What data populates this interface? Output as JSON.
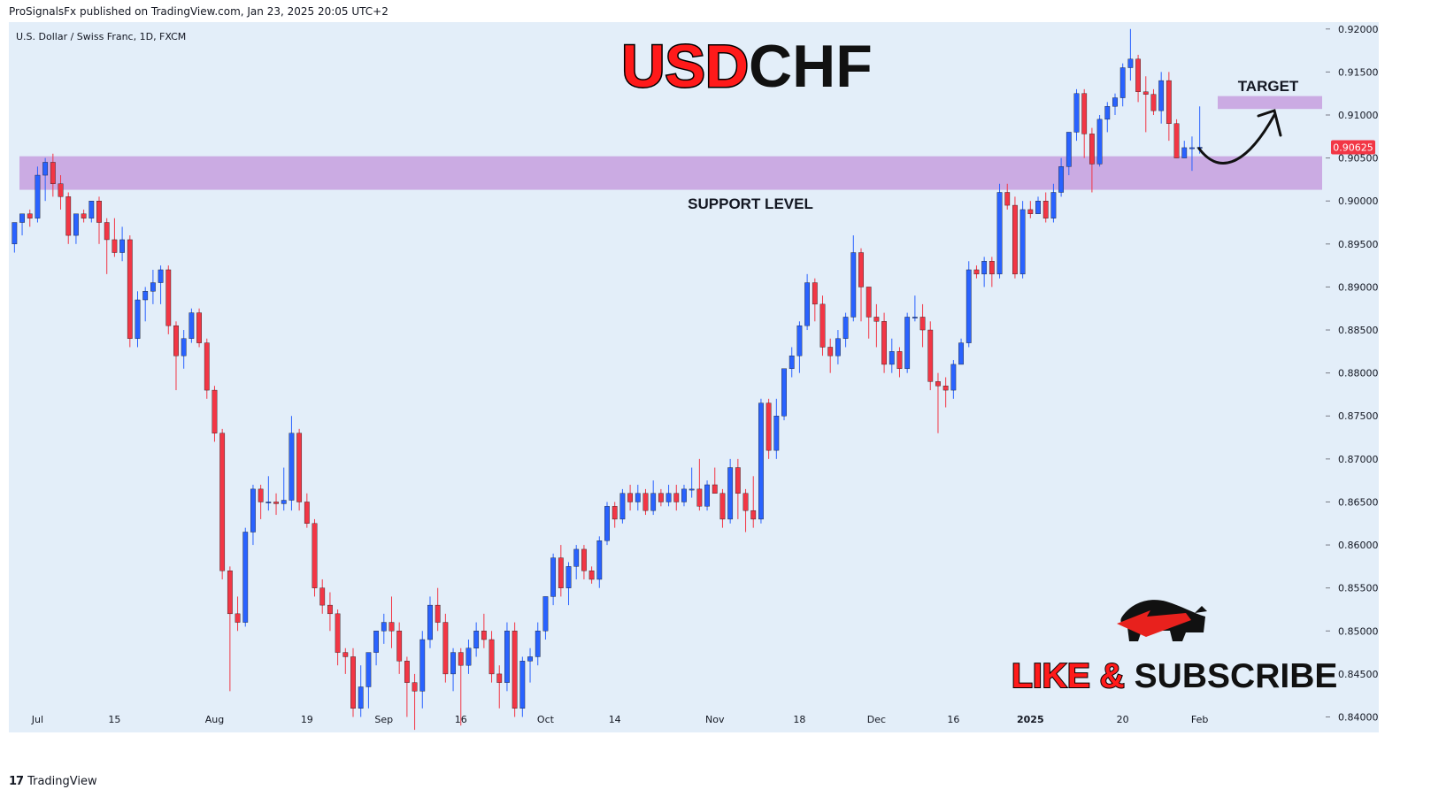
{
  "header": {
    "publisher": "ProSignalsFx published on TradingView.com, Jan 23, 2025 20:05 UTC+2"
  },
  "footer": {
    "brand": "TradingView",
    "logo_glyph": "17"
  },
  "overlay": {
    "title_part1": "USD",
    "title_part2": "CHF",
    "support_label": "SUPPORT LEVEL",
    "target_label": "TARGET",
    "cta_part1": "LIKE & ",
    "cta_part2": "SUBSCRIBE"
  },
  "colors": {
    "bg": "#e3eef9",
    "up": "#2962ff",
    "down": "#f23645",
    "zone": "#c9a7e2",
    "title_red": "#ff1a1a",
    "text": "#131722",
    "price_tag": "#f23645"
  },
  "chart_data": {
    "type": "candlestick",
    "symbol_label": "U.S. Dollar / Swiss Franc, 1D, FXCM",
    "ylim": [
      0.8382,
      0.9208
    ],
    "y_ticks": [
      {
        "v": 0.92,
        "label": "0.92000"
      },
      {
        "v": 0.915,
        "label": "0.91500"
      },
      {
        "v": 0.91,
        "label": "0.91000"
      },
      {
        "v": 0.905,
        "label": "0.90500"
      },
      {
        "v": 0.9,
        "label": "0.90000"
      },
      {
        "v": 0.895,
        "label": "0.89500"
      },
      {
        "v": 0.89,
        "label": "0.89000"
      },
      {
        "v": 0.885,
        "label": "0.88500"
      },
      {
        "v": 0.88,
        "label": "0.88000"
      },
      {
        "v": 0.875,
        "label": "0.87500"
      },
      {
        "v": 0.87,
        "label": "0.87000"
      },
      {
        "v": 0.865,
        "label": "0.86500"
      },
      {
        "v": 0.86,
        "label": "0.86000"
      },
      {
        "v": 0.855,
        "label": "0.85500"
      },
      {
        "v": 0.85,
        "label": "0.85000"
      },
      {
        "v": 0.845,
        "label": "0.84500"
      },
      {
        "v": 0.84,
        "label": "0.84000"
      }
    ],
    "x_ticks": [
      {
        "i": 3,
        "label": "Jul"
      },
      {
        "i": 13,
        "label": "15"
      },
      {
        "i": 26,
        "label": "Aug"
      },
      {
        "i": 38,
        "label": "19"
      },
      {
        "i": 48,
        "label": "Sep"
      },
      {
        "i": 58,
        "label": "16"
      },
      {
        "i": 69,
        "label": "Oct"
      },
      {
        "i": 78,
        "label": "14"
      },
      {
        "i": 91,
        "label": "Nov"
      },
      {
        "i": 102,
        "label": "18"
      },
      {
        "i": 112,
        "label": "Dec"
      },
      {
        "i": 122,
        "label": "16"
      },
      {
        "i": 132,
        "label": "2025"
      },
      {
        "i": 144,
        "label": "20"
      },
      {
        "i": 154,
        "label": "Feb"
      }
    ],
    "last_price": {
      "v": 0.90625,
      "label": "0.90625"
    },
    "support_zone": [
      0.9013,
      0.9052
    ],
    "target_zone": [
      0.9107,
      0.9122
    ],
    "candles": [
      [
        0.895,
        0.8975,
        0.894,
        0.8975
      ],
      [
        0.8975,
        0.8985,
        0.896,
        0.8985
      ],
      [
        0.8985,
        0.899,
        0.897,
        0.898
      ],
      [
        0.898,
        0.904,
        0.8975,
        0.903
      ],
      [
        0.903,
        0.905,
        0.9,
        0.9045
      ],
      [
        0.9045,
        0.9055,
        0.9005,
        0.902
      ],
      [
        0.902,
        0.903,
        0.899,
        0.9005
      ],
      [
        0.9005,
        0.901,
        0.895,
        0.896
      ],
      [
        0.896,
        0.8985,
        0.895,
        0.8985
      ],
      [
        0.8985,
        0.899,
        0.8975,
        0.898
      ],
      [
        0.898,
        0.9,
        0.8975,
        0.9
      ],
      [
        0.9,
        0.9005,
        0.895,
        0.8975
      ],
      [
        0.8975,
        0.898,
        0.8915,
        0.8955
      ],
      [
        0.8955,
        0.898,
        0.8935,
        0.894
      ],
      [
        0.894,
        0.897,
        0.893,
        0.8955
      ],
      [
        0.8955,
        0.896,
        0.883,
        0.884
      ],
      [
        0.884,
        0.8895,
        0.883,
        0.8885
      ],
      [
        0.8885,
        0.89,
        0.886,
        0.8895
      ],
      [
        0.8895,
        0.892,
        0.888,
        0.8905
      ],
      [
        0.8905,
        0.8925,
        0.888,
        0.892
      ],
      [
        0.892,
        0.8925,
        0.8845,
        0.8855
      ],
      [
        0.8855,
        0.886,
        0.878,
        0.882
      ],
      [
        0.882,
        0.885,
        0.8805,
        0.884
      ],
      [
        0.884,
        0.8875,
        0.8835,
        0.887
      ],
      [
        0.887,
        0.8875,
        0.883,
        0.8835
      ],
      [
        0.8835,
        0.884,
        0.877,
        0.878
      ],
      [
        0.878,
        0.8785,
        0.872,
        0.873
      ],
      [
        0.873,
        0.8735,
        0.856,
        0.857
      ],
      [
        0.857,
        0.8575,
        0.843,
        0.852
      ],
      [
        0.852,
        0.854,
        0.85,
        0.851
      ],
      [
        0.851,
        0.862,
        0.8505,
        0.8615
      ],
      [
        0.8615,
        0.867,
        0.86,
        0.8665
      ],
      [
        0.8665,
        0.867,
        0.863,
        0.865
      ],
      [
        0.865,
        0.868,
        0.864,
        0.865
      ],
      [
        0.865,
        0.866,
        0.8635,
        0.8648
      ],
      [
        0.8648,
        0.869,
        0.864,
        0.8652
      ],
      [
        0.8652,
        0.875,
        0.864,
        0.873
      ],
      [
        0.873,
        0.8735,
        0.864,
        0.865
      ],
      [
        0.865,
        0.866,
        0.862,
        0.8625
      ],
      [
        0.8625,
        0.863,
        0.854,
        0.855
      ],
      [
        0.855,
        0.856,
        0.852,
        0.853
      ],
      [
        0.853,
        0.8545,
        0.85,
        0.852
      ],
      [
        0.852,
        0.8525,
        0.846,
        0.8475
      ],
      [
        0.8475,
        0.848,
        0.845,
        0.847
      ],
      [
        0.847,
        0.848,
        0.84,
        0.841
      ],
      [
        0.841,
        0.846,
        0.84,
        0.8435
      ],
      [
        0.8435,
        0.847,
        0.841,
        0.8475
      ],
      [
        0.8475,
        0.85,
        0.846,
        0.85
      ],
      [
        0.85,
        0.852,
        0.8485,
        0.851
      ],
      [
        0.851,
        0.854,
        0.848,
        0.85
      ],
      [
        0.85,
        0.851,
        0.845,
        0.8465
      ],
      [
        0.8465,
        0.847,
        0.84,
        0.844
      ],
      [
        0.844,
        0.845,
        0.8385,
        0.843
      ],
      [
        0.843,
        0.85,
        0.841,
        0.849
      ],
      [
        0.849,
        0.854,
        0.848,
        0.853
      ],
      [
        0.853,
        0.855,
        0.85,
        0.851
      ],
      [
        0.851,
        0.852,
        0.844,
        0.845
      ],
      [
        0.845,
        0.848,
        0.843,
        0.8475
      ],
      [
        0.8475,
        0.848,
        0.839,
        0.846
      ],
      [
        0.846,
        0.849,
        0.845,
        0.848
      ],
      [
        0.848,
        0.851,
        0.847,
        0.85
      ],
      [
        0.85,
        0.852,
        0.848,
        0.849
      ],
      [
        0.849,
        0.85,
        0.844,
        0.845
      ],
      [
        0.845,
        0.846,
        0.841,
        0.844
      ],
      [
        0.844,
        0.851,
        0.843,
        0.85
      ],
      [
        0.85,
        0.851,
        0.84,
        0.841
      ],
      [
        0.841,
        0.847,
        0.84,
        0.8465
      ],
      [
        0.8465,
        0.848,
        0.844,
        0.847
      ],
      [
        0.847,
        0.851,
        0.846,
        0.85
      ],
      [
        0.85,
        0.854,
        0.849,
        0.854
      ],
      [
        0.854,
        0.859,
        0.853,
        0.8585
      ],
      [
        0.8585,
        0.86,
        0.854,
        0.855
      ],
      [
        0.855,
        0.858,
        0.853,
        0.8575
      ],
      [
        0.8575,
        0.86,
        0.856,
        0.8595
      ],
      [
        0.8595,
        0.86,
        0.856,
        0.857
      ],
      [
        0.857,
        0.8575,
        0.8555,
        0.856
      ],
      [
        0.856,
        0.861,
        0.855,
        0.8605
      ],
      [
        0.8605,
        0.865,
        0.86,
        0.8645
      ],
      [
        0.8645,
        0.865,
        0.862,
        0.863
      ],
      [
        0.863,
        0.8665,
        0.8625,
        0.866
      ],
      [
        0.866,
        0.867,
        0.864,
        0.865
      ],
      [
        0.865,
        0.867,
        0.864,
        0.866
      ],
      [
        0.866,
        0.8665,
        0.8635,
        0.864
      ],
      [
        0.864,
        0.8675,
        0.8635,
        0.866
      ],
      [
        0.866,
        0.8665,
        0.8645,
        0.865
      ],
      [
        0.865,
        0.867,
        0.8645,
        0.866
      ],
      [
        0.866,
        0.867,
        0.864,
        0.865
      ],
      [
        0.865,
        0.867,
        0.8645,
        0.8665
      ],
      [
        0.8665,
        0.869,
        0.8655,
        0.8665
      ],
      [
        0.8665,
        0.87,
        0.864,
        0.8645
      ],
      [
        0.8645,
        0.8675,
        0.864,
        0.867
      ],
      [
        0.867,
        0.869,
        0.866,
        0.866
      ],
      [
        0.866,
        0.8665,
        0.862,
        0.863
      ],
      [
        0.863,
        0.87,
        0.8625,
        0.869
      ],
      [
        0.869,
        0.87,
        0.863,
        0.866
      ],
      [
        0.866,
        0.8665,
        0.8615,
        0.864
      ],
      [
        0.864,
        0.868,
        0.862,
        0.863
      ],
      [
        0.863,
        0.877,
        0.8625,
        0.8765
      ],
      [
        0.8765,
        0.877,
        0.87,
        0.871
      ],
      [
        0.871,
        0.877,
        0.87,
        0.875
      ],
      [
        0.875,
        0.88,
        0.8745,
        0.8805
      ],
      [
        0.8805,
        0.883,
        0.8795,
        0.882
      ],
      [
        0.882,
        0.886,
        0.88,
        0.8855
      ],
      [
        0.8855,
        0.8915,
        0.885,
        0.8905
      ],
      [
        0.8905,
        0.891,
        0.886,
        0.888
      ],
      [
        0.888,
        0.889,
        0.882,
        0.883
      ],
      [
        0.883,
        0.884,
        0.88,
        0.882
      ],
      [
        0.882,
        0.885,
        0.881,
        0.884
      ],
      [
        0.884,
        0.887,
        0.883,
        0.8865
      ],
      [
        0.8865,
        0.896,
        0.886,
        0.894
      ],
      [
        0.894,
        0.8945,
        0.886,
        0.89
      ],
      [
        0.89,
        0.89,
        0.884,
        0.8865
      ],
      [
        0.8865,
        0.888,
        0.883,
        0.886
      ],
      [
        0.886,
        0.887,
        0.88,
        0.881
      ],
      [
        0.881,
        0.884,
        0.88,
        0.8825
      ],
      [
        0.8825,
        0.883,
        0.8795,
        0.8805
      ],
      [
        0.8805,
        0.887,
        0.88,
        0.8865
      ],
      [
        0.8865,
        0.889,
        0.886,
        0.8865
      ],
      [
        0.8865,
        0.888,
        0.883,
        0.885
      ],
      [
        0.885,
        0.886,
        0.878,
        0.879
      ],
      [
        0.879,
        0.88,
        0.873,
        0.8785
      ],
      [
        0.8785,
        0.8795,
        0.876,
        0.878
      ],
      [
        0.878,
        0.8815,
        0.877,
        0.881
      ],
      [
        0.881,
        0.884,
        0.881,
        0.8835
      ],
      [
        0.8835,
        0.893,
        0.883,
        0.892
      ],
      [
        0.892,
        0.8925,
        0.891,
        0.8915
      ],
      [
        0.8915,
        0.8935,
        0.89,
        0.893
      ],
      [
        0.893,
        0.8935,
        0.89,
        0.8915
      ],
      [
        0.8915,
        0.902,
        0.891,
        0.901
      ],
      [
        0.901,
        0.902,
        0.899,
        0.8995
      ],
      [
        0.8995,
        0.9005,
        0.891,
        0.8915
      ],
      [
        0.8915,
        0.9,
        0.891,
        0.899
      ],
      [
        0.899,
        0.9,
        0.898,
        0.8985
      ],
      [
        0.8985,
        0.9005,
        0.8985,
        0.9
      ],
      [
        0.9,
        0.901,
        0.8975,
        0.898
      ],
      [
        0.898,
        0.902,
        0.8975,
        0.901
      ],
      [
        0.901,
        0.905,
        0.9005,
        0.904
      ],
      [
        0.904,
        0.908,
        0.903,
        0.908
      ],
      [
        0.908,
        0.913,
        0.907,
        0.9125
      ],
      [
        0.9125,
        0.913,
        0.905,
        0.9078
      ],
      [
        0.9078,
        0.9085,
        0.901,
        0.9043
      ],
      [
        0.9043,
        0.91,
        0.904,
        0.9095
      ],
      [
        0.9095,
        0.9115,
        0.908,
        0.911
      ],
      [
        0.911,
        0.9125,
        0.91,
        0.912
      ],
      [
        0.912,
        0.916,
        0.911,
        0.9155
      ],
      [
        0.9155,
        0.92,
        0.914,
        0.9165
      ],
      [
        0.9165,
        0.917,
        0.9115,
        0.9127
      ],
      [
        0.9127,
        0.9145,
        0.908,
        0.9124
      ],
      [
        0.9124,
        0.913,
        0.91,
        0.9105
      ],
      [
        0.9105,
        0.915,
        0.909,
        0.914
      ],
      [
        0.914,
        0.915,
        0.907,
        0.909
      ],
      [
        0.909,
        0.9095,
        0.905,
        0.905
      ],
      [
        0.905,
        0.907,
        0.905,
        0.9062
      ],
      [
        0.9062,
        0.9075,
        0.9035,
        0.9062
      ],
      [
        0.9062,
        0.911,
        0.9055,
        0.90625
      ]
    ]
  }
}
